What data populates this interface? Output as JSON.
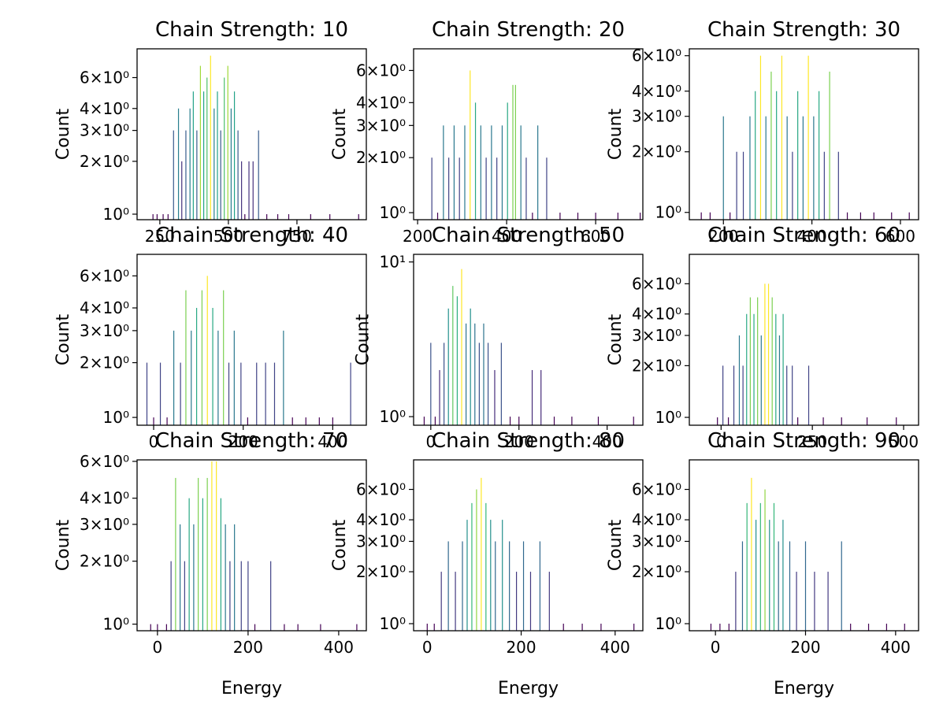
{
  "chart_data": [
    {
      "type": "bar",
      "title": "Chain Strength: 10",
      "ylabel": "Count",
      "colormap": "viridis",
      "log_y": true,
      "x": [
        225,
        240,
        262,
        280,
        300,
        318,
        330,
        345,
        360,
        372,
        385,
        398,
        410,
        422,
        435,
        448,
        460,
        472,
        485,
        498,
        510,
        522,
        535,
        548,
        560,
        575,
        590,
        610,
        640,
        680,
        720,
        800,
        870,
        975
      ],
      "values": [
        1,
        1,
        1,
        1,
        3,
        4,
        2,
        3,
        4,
        5,
        3,
        7,
        5,
        6,
        8,
        4,
        5,
        3,
        6,
        7,
        4,
        5,
        3,
        2,
        1,
        2,
        2,
        3,
        1,
        1,
        1,
        1,
        1,
        1
      ],
      "xlim": [
        167,
        1003
      ],
      "xticks": [
        250,
        500,
        750
      ],
      "ylim": [
        0.93,
        8.75
      ],
      "yticks": [
        {
          "value": 1,
          "label": "10⁰"
        },
        {
          "value": 2,
          "label": "2×10⁰"
        },
        {
          "value": 3,
          "label": "3×10⁰"
        },
        {
          "value": 4,
          "label": "4×10⁰"
        },
        {
          "value": 6,
          "label": "6×10⁰"
        }
      ]
    },
    {
      "type": "bar",
      "title": "Chain Strength: 20",
      "ylabel": "Count",
      "colormap": "viridis",
      "log_y": true,
      "x": [
        232,
        245,
        258,
        270,
        282,
        294,
        306,
        318,
        330,
        342,
        354,
        366,
        378,
        390,
        402,
        414,
        420,
        432,
        444,
        458,
        470,
        490,
        520,
        560,
        600,
        650,
        700
      ],
      "values": [
        2,
        1,
        3,
        2,
        3,
        2,
        3,
        6,
        4,
        3,
        2,
        3,
        2,
        3,
        4,
        5,
        5,
        3,
        2,
        1,
        3,
        2,
        1,
        1,
        1,
        1,
        1
      ],
      "xlim": [
        191,
        706
      ],
      "xticks": [
        200,
        400,
        600
      ],
      "ylim": [
        0.915,
        7.88
      ],
      "yticks": [
        {
          "value": 1,
          "label": "10⁰"
        },
        {
          "value": 2,
          "label": "2×10⁰"
        },
        {
          "value": 3,
          "label": "3×10⁰"
        },
        {
          "value": 4,
          "label": "4×10⁰"
        },
        {
          "value": 6,
          "label": "6×10⁰"
        }
      ]
    },
    {
      "type": "bar",
      "title": "Chain Strength: 30",
      "ylabel": "Count",
      "colormap": "viridis",
      "log_y": true,
      "x": [
        150,
        170,
        200,
        215,
        230,
        245,
        260,
        272,
        284,
        296,
        308,
        320,
        332,
        344,
        356,
        368,
        380,
        392,
        404,
        416,
        428,
        440,
        460,
        480,
        510,
        540,
        580,
        620
      ],
      "values": [
        1,
        1,
        3,
        1,
        2,
        2,
        3,
        4,
        6,
        3,
        5,
        4,
        6,
        3,
        2,
        4,
        3,
        6,
        3,
        4,
        2,
        5,
        2,
        1,
        1,
        1,
        1,
        1
      ],
      "xlim": [
        123,
        641
      ],
      "xticks": [
        200,
        400,
        600
      ],
      "ylim": [
        0.92,
        6.49
      ],
      "yticks": [
        {
          "value": 1,
          "label": "10⁰"
        },
        {
          "value": 2,
          "label": "2×10⁰"
        },
        {
          "value": 3,
          "label": "3×10⁰"
        },
        {
          "value": 4,
          "label": "4×10⁰"
        },
        {
          "value": 6,
          "label": "6×10⁰"
        }
      ]
    },
    {
      "type": "bar",
      "title": "Chain Strength: 40",
      "ylabel": "Count",
      "colormap": "viridis",
      "log_y": true,
      "x": [
        -15,
        0,
        15,
        30,
        45,
        60,
        72,
        84,
        96,
        108,
        120,
        132,
        144,
        156,
        168,
        180,
        195,
        210,
        230,
        250,
        270,
        290,
        310,
        340,
        370,
        400,
        440
      ],
      "values": [
        2,
        1,
        2,
        1,
        3,
        2,
        5,
        3,
        4,
        5,
        6,
        4,
        3,
        5,
        2,
        3,
        2,
        1,
        2,
        2,
        2,
        3,
        1,
        1,
        1,
        1,
        2
      ],
      "xlim": [
        -37,
        475
      ],
      "xticks": [
        0,
        200,
        400
      ],
      "ylim": [
        0.906,
        7.88
      ],
      "yticks": [
        {
          "value": 1,
          "label": "10⁰"
        },
        {
          "value": 2,
          "label": "2×10⁰"
        },
        {
          "value": 3,
          "label": "3×10⁰"
        },
        {
          "value": 4,
          "label": "4×10⁰"
        },
        {
          "value": 6,
          "label": "6×10⁰"
        }
      ]
    },
    {
      "type": "bar",
      "title": "Chain Strength: 50",
      "ylabel": "Count",
      "colormap": "viridis",
      "log_y": true,
      "x": [
        -15,
        0,
        10,
        20,
        30,
        40,
        50,
        60,
        70,
        80,
        90,
        100,
        110,
        120,
        130,
        145,
        160,
        180,
        200,
        230,
        250,
        280,
        320,
        380,
        460
      ],
      "values": [
        1,
        3,
        1,
        2,
        3,
        5,
        7,
        6,
        9,
        4,
        5,
        4,
        3,
        4,
        3,
        2,
        3,
        1,
        1,
        2,
        2,
        1,
        1,
        1,
        1
      ],
      "xlim": [
        -39,
        481
      ],
      "xticks": [
        0,
        200,
        400
      ],
      "ylim": [
        0.88,
        11.2
      ],
      "yticks": [
        {
          "value": 1,
          "label": "10⁰"
        },
        {
          "value": 10,
          "label": "10¹"
        }
      ]
    },
    {
      "type": "bar",
      "title": "Chain Strength: 60",
      "ylabel": "Count",
      "colormap": "viridis",
      "log_y": true,
      "x": [
        -10,
        5,
        20,
        35,
        50,
        60,
        70,
        80,
        90,
        100,
        110,
        120,
        130,
        140,
        150,
        160,
        170,
        180,
        195,
        210,
        240,
        280,
        330,
        400,
        480
      ],
      "values": [
        1,
        2,
        1,
        2,
        3,
        2,
        4,
        5,
        4,
        5,
        3,
        6,
        6,
        5,
        4,
        3,
        4,
        2,
        2,
        1,
        2,
        1,
        1,
        1,
        1
      ],
      "xlim": [
        -87,
        541
      ],
      "xticks": [
        0,
        250,
        500
      ],
      "ylim": [
        0.9,
        8.9
      ],
      "yticks": [
        {
          "value": 1,
          "label": "10⁰"
        },
        {
          "value": 2,
          "label": "2×10⁰"
        },
        {
          "value": 3,
          "label": "3×10⁰"
        },
        {
          "value": 4,
          "label": "4×10⁰"
        },
        {
          "value": 6,
          "label": "6×10⁰"
        }
      ]
    },
    {
      "type": "bar",
      "title": "Chain Strength: 70",
      "ylabel": "Count",
      "xlabel": "Energy",
      "colormap": "viridis",
      "log_y": true,
      "x": [
        -15,
        0,
        20,
        30,
        40,
        50,
        60,
        70,
        80,
        90,
        100,
        110,
        120,
        130,
        140,
        150,
        160,
        170,
        185,
        200,
        215,
        250,
        280,
        310,
        360,
        440
      ],
      "values": [
        1,
        1,
        1,
        2,
        5,
        3,
        2,
        4,
        3,
        5,
        4,
        5,
        6,
        6,
        4,
        3,
        2,
        3,
        2,
        2,
        1,
        2,
        1,
        1,
        1,
        1
      ],
      "xlim": [
        -45,
        461
      ],
      "xticks": [
        0,
        200,
        400
      ],
      "ylim": [
        0.93,
        6.1
      ],
      "yticks": [
        {
          "value": 1,
          "label": "10⁰"
        },
        {
          "value": 2,
          "label": "2×10⁰"
        },
        {
          "value": 3,
          "label": "3×10⁰"
        },
        {
          "value": 4,
          "label": "4×10⁰"
        },
        {
          "value": 6,
          "label": "6×10⁰"
        }
      ]
    },
    {
      "type": "bar",
      "title": "Chain Strength: 80",
      "ylabel": "Count",
      "xlabel": "Energy",
      "colormap": "viridis",
      "log_y": true,
      "x": [
        0,
        15,
        30,
        45,
        60,
        75,
        85,
        95,
        105,
        115,
        125,
        135,
        145,
        160,
        175,
        190,
        205,
        220,
        240,
        260,
        290,
        330,
        370,
        440
      ],
      "values": [
        1,
        1,
        2,
        3,
        2,
        3,
        4,
        5,
        6,
        7,
        5,
        4,
        3,
        4,
        3,
        2,
        3,
        2,
        3,
        2,
        1,
        1,
        1,
        1
      ],
      "xlim": [
        -29,
        459
      ],
      "xticks": [
        0,
        200,
        400
      ],
      "ylim": [
        0.91,
        8.9
      ],
      "yticks": [
        {
          "value": 1,
          "label": "10⁰"
        },
        {
          "value": 2,
          "label": "2×10⁰"
        },
        {
          "value": 3,
          "label": "3×10⁰"
        },
        {
          "value": 4,
          "label": "4×10⁰"
        },
        {
          "value": 6,
          "label": "6×10⁰"
        }
      ]
    },
    {
      "type": "bar",
      "title": "Chain Strength: 90",
      "ylabel": "Count",
      "xlabel": "Energy",
      "colormap": "viridis",
      "log_y": true,
      "x": [
        -10,
        10,
        30,
        45,
        60,
        70,
        80,
        90,
        100,
        110,
        120,
        130,
        140,
        150,
        165,
        180,
        200,
        220,
        250,
        280,
        300,
        340,
        380,
        420
      ],
      "values": [
        1,
        1,
        1,
        2,
        3,
        5,
        7,
        4,
        5,
        6,
        4,
        5,
        3,
        4,
        3,
        2,
        3,
        2,
        2,
        3,
        1,
        1,
        1,
        1
      ],
      "xlim": [
        -58,
        451
      ],
      "xticks": [
        0,
        200,
        400
      ],
      "ylim": [
        0.91,
        8.9
      ],
      "yticks": [
        {
          "value": 1,
          "label": "10⁰"
        },
        {
          "value": 2,
          "label": "2×10⁰"
        },
        {
          "value": 3,
          "label": "3×10⁰"
        },
        {
          "value": 4,
          "label": "4×10⁰"
        },
        {
          "value": 6,
          "label": "6×10⁰"
        }
      ]
    }
  ]
}
